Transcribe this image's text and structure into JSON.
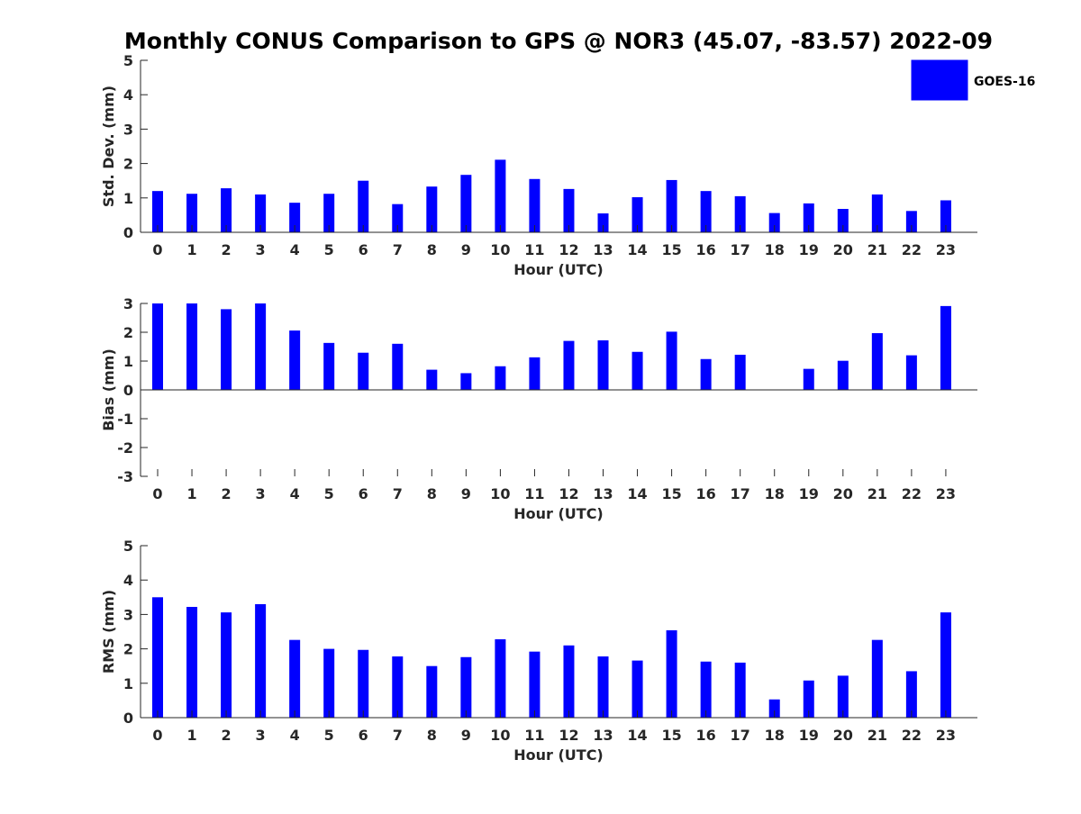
{
  "chart_data": {
    "title": "Monthly CONUS Comparison to GPS @ NOR3 (45.07, -83.57) 2022-09",
    "legend": {
      "label": "GOES-16",
      "color": "#0000ff",
      "placement": "top-right"
    },
    "categories": [
      "0",
      "1",
      "2",
      "3",
      "4",
      "5",
      "6",
      "7",
      "8",
      "9",
      "10",
      "11",
      "12",
      "13",
      "14",
      "15",
      "16",
      "17",
      "18",
      "19",
      "20",
      "21",
      "22",
      "23"
    ],
    "panels": [
      {
        "type": "bar",
        "xlabel": "Hour (UTC)",
        "ylabel": "Std. Dev. (mm)",
        "ylim": [
          0,
          5
        ],
        "yticks": [
          "0",
          "1",
          "2",
          "3",
          "4",
          "5"
        ],
        "values": [
          1.2,
          1.12,
          1.28,
          1.1,
          0.86,
          1.12,
          1.5,
          0.82,
          1.33,
          1.67,
          2.11,
          1.55,
          1.26,
          0.55,
          1.02,
          1.52,
          1.2,
          1.05,
          0.56,
          0.84,
          0.68,
          1.1,
          0.62,
          0.93
        ]
      },
      {
        "type": "bar",
        "xlabel": "Hour (UTC)",
        "ylabel": "Bias (mm)",
        "ylim": [
          -3,
          3
        ],
        "yticks": [
          "-3",
          "-2",
          "-1",
          "0",
          "1",
          "2",
          "3"
        ],
        "values": [
          3.0,
          3.0,
          2.8,
          3.0,
          2.06,
          1.63,
          1.29,
          1.6,
          0.7,
          0.58,
          0.82,
          1.13,
          1.7,
          1.72,
          1.32,
          2.02,
          1.07,
          1.22,
          0.0,
          0.73,
          1.01,
          1.97,
          1.2,
          2.91
        ]
      },
      {
        "type": "bar",
        "xlabel": "Hour (UTC)",
        "ylabel": "RMS (mm)",
        "ylim": [
          0,
          5
        ],
        "yticks": [
          "0",
          "1",
          "2",
          "3",
          "4",
          "5"
        ],
        "values": [
          3.5,
          3.22,
          3.06,
          3.3,
          2.26,
          2.0,
          1.97,
          1.78,
          1.5,
          1.76,
          2.28,
          1.92,
          2.1,
          1.78,
          1.66,
          2.54,
          1.63,
          1.6,
          0.53,
          1.08,
          1.22,
          2.26,
          1.35,
          3.06
        ]
      }
    ]
  }
}
